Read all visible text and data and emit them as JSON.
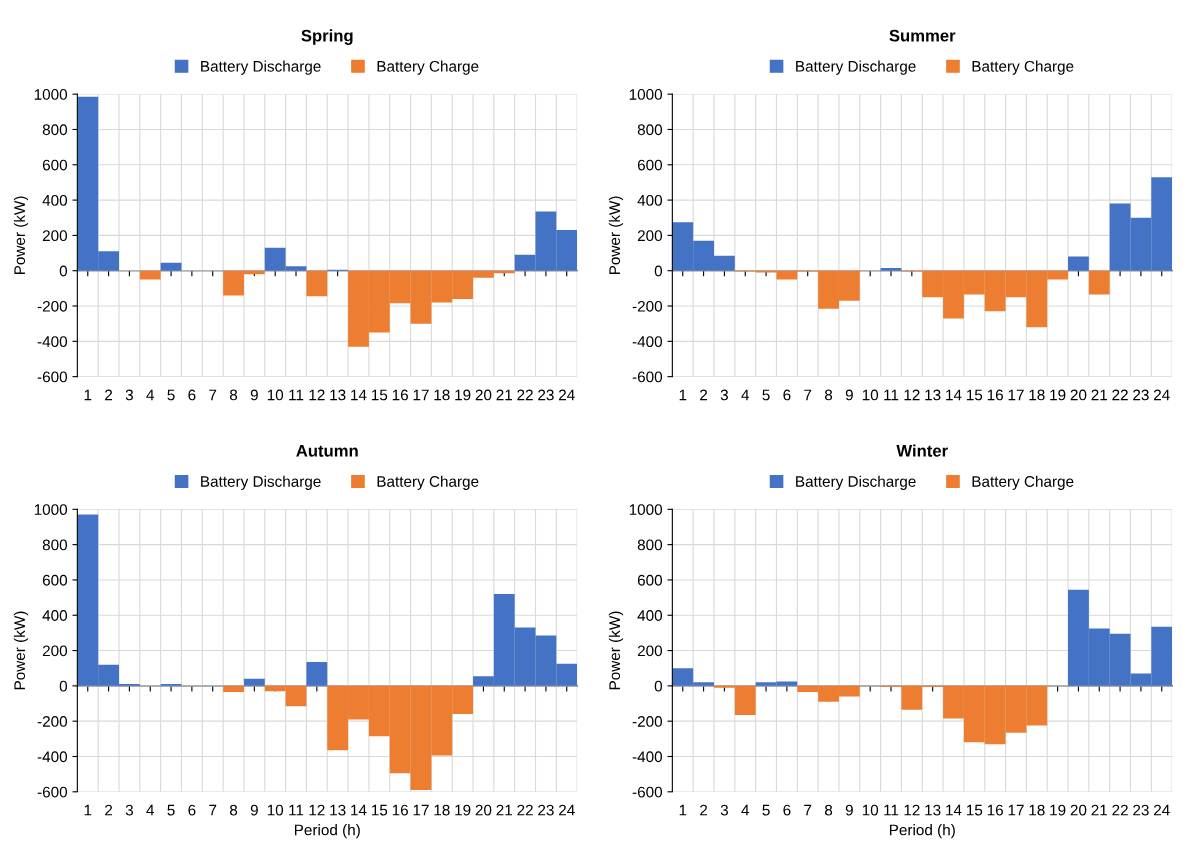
{
  "chart_data": [
    {
      "type": "bar",
      "title": "Spring",
      "ylabel": "Power (kW)",
      "categories": [
        "1",
        "2",
        "3",
        "4",
        "5",
        "6",
        "7",
        "8",
        "9",
        "10",
        "11",
        "12",
        "13",
        "14",
        "15",
        "16",
        "17",
        "18",
        "19",
        "20",
        "21",
        "22",
        "23",
        "24"
      ],
      "series": [
        {
          "name": "Battery Discharge",
          "color": "#4472c4",
          "values": [
            985,
            110,
            0,
            0,
            45,
            0,
            0,
            0,
            0,
            130,
            25,
            0,
            5,
            0,
            0,
            0,
            0,
            0,
            0,
            0,
            0,
            90,
            335,
            230
          ]
        },
        {
          "name": "Battery Charge",
          "color": "#ed7d31",
          "values": [
            0,
            0,
            0,
            -50,
            0,
            0,
            0,
            -140,
            -20,
            0,
            0,
            -145,
            0,
            -430,
            -350,
            -185,
            -300,
            -180,
            -160,
            -40,
            -15,
            0,
            0,
            0
          ]
        }
      ],
      "ylim": [
        -600,
        1000
      ],
      "yticks": [
        -600,
        -400,
        -200,
        0,
        200,
        400,
        600,
        800,
        1000
      ],
      "grid": true,
      "legend": "top"
    },
    {
      "type": "bar",
      "title": "Summer",
      "ylabel": "Power (kW)",
      "categories": [
        "1",
        "2",
        "3",
        "4",
        "5",
        "6",
        "7",
        "8",
        "9",
        "10",
        "11",
        "12",
        "13",
        "14",
        "15",
        "16",
        "17",
        "18",
        "19",
        "20",
        "21",
        "22",
        "23",
        "24"
      ],
      "series": [
        {
          "name": "Battery Discharge",
          "color": "#4472c4",
          "values": [
            275,
            170,
            85,
            0,
            0,
            0,
            0,
            0,
            0,
            0,
            15,
            0,
            0,
            0,
            0,
            0,
            0,
            0,
            0,
            80,
            0,
            380,
            300,
            530
          ]
        },
        {
          "name": "Battery Charge",
          "color": "#ed7d31",
          "values": [
            0,
            0,
            0,
            -5,
            -10,
            -50,
            -5,
            -215,
            -170,
            0,
            0,
            -5,
            -150,
            -270,
            -135,
            -230,
            -150,
            -320,
            -50,
            0,
            -135,
            0,
            0,
            0
          ]
        }
      ],
      "ylim": [
        -600,
        1000
      ],
      "yticks": [
        -600,
        -400,
        -200,
        0,
        200,
        400,
        600,
        800,
        1000
      ],
      "grid": true,
      "legend": "top"
    },
    {
      "type": "bar",
      "title": "Autumn",
      "ylabel": "Power (kW)",
      "xlabel": "Period (h)",
      "categories": [
        "1",
        "2",
        "3",
        "4",
        "5",
        "6",
        "7",
        "8",
        "9",
        "10",
        "11",
        "12",
        "13",
        "14",
        "15",
        "16",
        "17",
        "18",
        "19",
        "20",
        "21",
        "22",
        "23",
        "24"
      ],
      "series": [
        {
          "name": "Battery Discharge",
          "color": "#4472c4",
          "values": [
            970,
            120,
            10,
            0,
            10,
            0,
            0,
            0,
            40,
            0,
            0,
            135,
            0,
            0,
            0,
            0,
            0,
            0,
            0,
            55,
            520,
            330,
            285,
            125
          ]
        },
        {
          "name": "Battery Charge",
          "color": "#ed7d31",
          "values": [
            0,
            0,
            0,
            0,
            0,
            0,
            0,
            -35,
            0,
            -30,
            -115,
            0,
            -365,
            -190,
            -285,
            -495,
            -590,
            -395,
            -160,
            0,
            0,
            0,
            0,
            0
          ]
        }
      ],
      "ylim": [
        -600,
        1000
      ],
      "yticks": [
        -600,
        -400,
        -200,
        0,
        200,
        400,
        600,
        800,
        1000
      ],
      "grid": true,
      "legend": "top"
    },
    {
      "type": "bar",
      "title": "Winter",
      "ylabel": "Power (kW)",
      "xlabel": "Period (h)",
      "categories": [
        "1",
        "2",
        "3",
        "4",
        "5",
        "6",
        "7",
        "8",
        "9",
        "10",
        "11",
        "12",
        "13",
        "14",
        "15",
        "16",
        "17",
        "18",
        "19",
        "20",
        "21",
        "22",
        "23",
        "24"
      ],
      "series": [
        {
          "name": "Battery Discharge",
          "color": "#4472c4",
          "values": [
            100,
            20,
            0,
            0,
            20,
            25,
            0,
            0,
            0,
            0,
            0,
            0,
            0,
            0,
            0,
            0,
            0,
            0,
            0,
            545,
            325,
            295,
            70,
            335
          ]
        },
        {
          "name": "Battery Charge",
          "color": "#ed7d31",
          "values": [
            0,
            0,
            -10,
            -165,
            0,
            0,
            -35,
            -90,
            -60,
            0,
            -5,
            -135,
            -5,
            -185,
            -320,
            -330,
            -265,
            -225,
            0,
            0,
            0,
            0,
            0,
            0
          ]
        }
      ],
      "ylim": [
        -600,
        1000
      ],
      "yticks": [
        -600,
        -400,
        -200,
        0,
        200,
        400,
        600,
        800,
        1000
      ],
      "grid": true,
      "legend": "top"
    }
  ]
}
